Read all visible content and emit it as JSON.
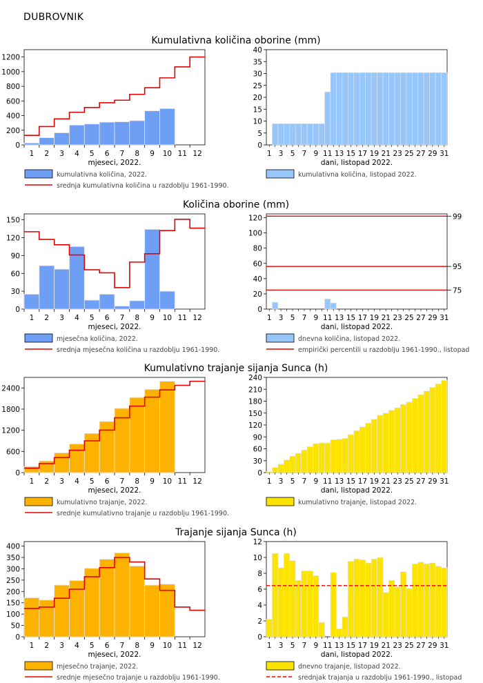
{
  "station": "DUBROVNIK",
  "colors": {
    "prec_month": "#6f9ef5",
    "prec_day": "#96c6fa",
    "sun_month": "#fdb200",
    "sun_day": "#fde300",
    "ref_line": "#e60000",
    "bar_edge": "#e6e6e6"
  },
  "chart_data": [
    {
      "section": "Kumulativna količina oborine (mm)",
      "left": {
        "type": "bar",
        "categories": [
          "1",
          "2",
          "3",
          "4",
          "5",
          "6",
          "7",
          "8",
          "9",
          "10",
          "11",
          "12"
        ],
        "values": [
          25,
          98,
          165,
          270,
          285,
          310,
          315,
          330,
          465,
          495,
          null,
          null
        ],
        "ref_line": [
          130,
          250,
          355,
          445,
          510,
          575,
          610,
          690,
          780,
          915,
          1065,
          1200
        ],
        "ylim": [
          0,
          1300
        ],
        "yticks": [
          0,
          200,
          400,
          600,
          800,
          1000,
          1200
        ],
        "xlabel": "mjeseci, 2022.",
        "legend": [
          "kumulativna količina, 2022.",
          "srednja kumulativna količina u razdoblju 1961-1990."
        ]
      },
      "right": {
        "type": "bar",
        "xticks": [
          "1",
          "3",
          "5",
          "7",
          "9",
          "11",
          "13",
          "15",
          "17",
          "19",
          "21",
          "23",
          "25",
          "27",
          "29",
          "31"
        ],
        "values": [
          0,
          8.9,
          8.9,
          8.9,
          8.9,
          8.9,
          8.9,
          8.9,
          8.9,
          8.9,
          22.3,
          30.4,
          30.4,
          30.4,
          30.4,
          30.4,
          30.4,
          30.4,
          30.4,
          30.4,
          30.4,
          30.4,
          30.4,
          30.4,
          30.4,
          30.4,
          30.4,
          30.4,
          30.4,
          30.4,
          30.4
        ],
        "ylim": [
          0,
          40
        ],
        "yticks": [
          0,
          5,
          10,
          15,
          20,
          25,
          30,
          35,
          40
        ],
        "xlabel": "dani, listopad 2022.",
        "legend": [
          "kumulativna količina, listopad 2022."
        ]
      }
    },
    {
      "section": "Količina oborine (mm)",
      "left": {
        "type": "bar",
        "categories": [
          "1",
          "2",
          "3",
          "4",
          "5",
          "6",
          "7",
          "8",
          "9",
          "10",
          "11",
          "12"
        ],
        "values": [
          25,
          73,
          67,
          105,
          15,
          25,
          5,
          14,
          134,
          30,
          null,
          null
        ],
        "ref_line": [
          130,
          117,
          108,
          91,
          66,
          61,
          36,
          79,
          93,
          132,
          151,
          136
        ],
        "ylim": [
          0,
          160
        ],
        "yticks": [
          0,
          30,
          60,
          90,
          120,
          150
        ],
        "xlabel": "mjeseci, 2022.",
        "legend": [
          "mjesečna količina, 2022.",
          "srednja mjesečna količina u razdoblju 1961-1990."
        ]
      },
      "right": {
        "type": "bar",
        "xticks": [
          "1",
          "3",
          "5",
          "7",
          "9",
          "11",
          "13",
          "15",
          "17",
          "19",
          "21",
          "23",
          "25",
          "27",
          "29",
          "31"
        ],
        "values": [
          0,
          8.9,
          0,
          0,
          0,
          0,
          0,
          0,
          0,
          0,
          13.4,
          8.1,
          0,
          0,
          0,
          0,
          0,
          0,
          0,
          0,
          0,
          0,
          0,
          0,
          0,
          0,
          0,
          0,
          0,
          0,
          0
        ],
        "percentiles": [
          {
            "label": "99",
            "value": 122
          },
          {
            "label": "95",
            "value": 56
          },
          {
            "label": "75",
            "value": 25
          }
        ],
        "ylim": [
          0,
          125
        ],
        "yticks": [
          0,
          20,
          40,
          60,
          80,
          100,
          120
        ],
        "xlabel": "dani, listopad 2022.",
        "legend": [
          "dnevna količina, listopad 2022.",
          "empirički percentili u razdoblju 1961-1990., listopad"
        ]
      }
    },
    {
      "section": "Kumulativno trajanje sijanja Sunca (h)",
      "left": {
        "type": "bar",
        "categories": [
          "1",
          "2",
          "3",
          "4",
          "5",
          "6",
          "7",
          "8",
          "9",
          "10",
          "11",
          "12"
        ],
        "values": [
          170,
          330,
          560,
          810,
          1110,
          1450,
          1820,
          2130,
          2360,
          2590,
          null,
          null
        ],
        "ref_line": [
          125,
          255,
          425,
          635,
          900,
          1205,
          1555,
          1885,
          2140,
          2345,
          2475,
          2590
        ],
        "ylim": [
          0,
          2700
        ],
        "yticks": [
          0,
          600,
          1200,
          1800,
          2400
        ],
        "xlabel": "mjeseci, 2022.",
        "legend": [
          "kumulativno trajanje, 2022.",
          "srednje kumulativno trajanje u razdoblju 1961-1990."
        ]
      },
      "right": {
        "type": "bar",
        "xticks": [
          "1",
          "3",
          "5",
          "7",
          "9",
          "11",
          "13",
          "15",
          "17",
          "19",
          "21",
          "23",
          "25",
          "27",
          "29",
          "31"
        ],
        "values": [
          2.2,
          12.7,
          21.4,
          31.9,
          41.5,
          48.6,
          56.9,
          65.2,
          72.9,
          74.7,
          74.7,
          82.8,
          83.8,
          86.3,
          95.8,
          105.6,
          115.3,
          124.6,
          134.4,
          144.4,
          150.0,
          157.1,
          163.4,
          171.6,
          177.7,
          186.9,
          196.3,
          205.5,
          214.8,
          223.7,
          232.4
        ],
        "ylim": [
          0,
          240
        ],
        "yticks": [
          0,
          30,
          60,
          90,
          120,
          150,
          180,
          210,
          240
        ],
        "xlabel": "dani, listopad 2022.",
        "legend": [
          "kumulativno trajanje, listopad 2022."
        ]
      }
    },
    {
      "section": "Trajanje sijanja Sunca (h)",
      "left": {
        "type": "bar",
        "categories": [
          "1",
          "2",
          "3",
          "4",
          "5",
          "6",
          "7",
          "8",
          "9",
          "10",
          "11",
          "12"
        ],
        "values": [
          172,
          162,
          228,
          248,
          302,
          342,
          370,
          312,
          228,
          232,
          null,
          null
        ],
        "ref_line": [
          125,
          131,
          170,
          210,
          265,
          305,
          350,
          330,
          255,
          205,
          131,
          117
        ],
        "ylim": [
          0,
          420
        ],
        "yticks": [
          0,
          50,
          100,
          150,
          200,
          250,
          300,
          350,
          400
        ],
        "xlabel": "mjeseci, 2022.",
        "legend": [
          "mjesečno trajanje, 2022.",
          "srednje mjesečno trajanje u razdoblju 1961-1990."
        ]
      },
      "right": {
        "type": "bar",
        "xticks": [
          "1",
          "3",
          "5",
          "7",
          "9",
          "11",
          "13",
          "15",
          "17",
          "19",
          "21",
          "23",
          "25",
          "27",
          "29",
          "31"
        ],
        "values": [
          2.2,
          10.5,
          8.7,
          10.5,
          9.6,
          7.1,
          8.3,
          8.3,
          7.7,
          1.8,
          0,
          8.1,
          1.0,
          2.5,
          9.5,
          9.8,
          9.7,
          9.3,
          9.8,
          10.0,
          5.6,
          7.1,
          6.3,
          8.2,
          6.1,
          9.2,
          9.4,
          9.2,
          9.3,
          8.9,
          8.7
        ],
        "mean_line": 6.45,
        "ylim": [
          0,
          12
        ],
        "yticks": [
          0,
          2,
          4,
          6,
          8,
          10,
          12
        ],
        "xlabel": "dani, listopad 2022.",
        "legend": [
          "dnevno trajanje, listopad 2022.",
          "srednjak trajanja u razdoblju 1961-1990., listopad"
        ]
      }
    }
  ]
}
